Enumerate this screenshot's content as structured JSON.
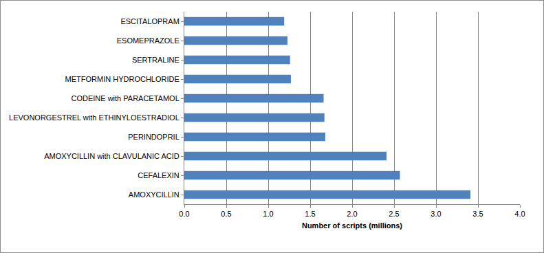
{
  "chart_data": {
    "type": "bar",
    "orientation": "horizontal",
    "x_label": "Number of scripts (millions)",
    "categories": [
      "AMOXYCILLIN",
      "CEFALEXIN",
      "AMOXYCILLIN with CLAVULANIC ACID",
      "PERINDOPRIL",
      "LEVONORGESTREL with ETHINYLOESTRADIOL",
      "CODEINE with PARACETAMOL",
      "METFORMIN HYDROCHLORIDE",
      "SERTRALINE",
      "ESOMEPRAZOLE",
      "ESCITALOPRAM"
    ],
    "values": [
      3.41,
      2.57,
      2.41,
      1.68,
      1.67,
      1.66,
      1.27,
      1.26,
      1.23,
      1.19
    ],
    "color": "#4f81bd",
    "xlim": [
      0,
      4
    ],
    "xticks": [
      {
        "value": 0,
        "label": "0.0"
      },
      0.5,
      {
        "value": 1,
        "label": "1.0"
      },
      1.5,
      {
        "value": 2,
        "label": "2.0"
      },
      2.5,
      {
        "value": 3,
        "label": "3.0"
      },
      3.5,
      {
        "value": 4,
        "label": "4.0"
      }
    ],
    "grid": true
  }
}
